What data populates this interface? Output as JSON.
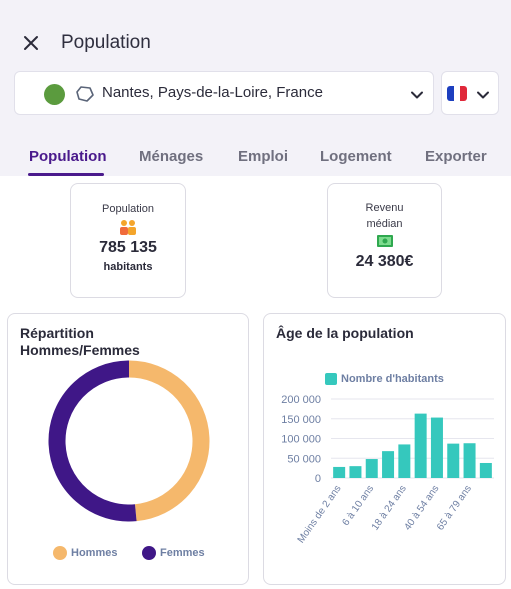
{
  "header": {
    "title": "Population"
  },
  "location": {
    "text": "Nantes, Pays-de-la-Loire, France",
    "dot_color": "#5b9b3e"
  },
  "language": {
    "flag_colors": [
      "#1d3fbf",
      "#ffffff",
      "#e0283a"
    ]
  },
  "tabs": [
    {
      "label": "Population",
      "active": true
    },
    {
      "label": "Ménages",
      "active": false
    },
    {
      "label": "Emploi",
      "active": false
    },
    {
      "label": "Logement",
      "active": false
    },
    {
      "label": "Exporter",
      "active": false
    }
  ],
  "kpis": {
    "population": {
      "label": "Population",
      "value": "785 135",
      "unit": "habitants",
      "icon": "people-icon"
    },
    "income": {
      "label_line1": "Revenu",
      "label_line2": "médian",
      "value": "24 380€",
      "icon": "money-icon"
    }
  },
  "gender_chart": {
    "title_line1": "Répartition",
    "title_line2": "Hommes/Femmes",
    "chart_data": {
      "type": "pie",
      "categories": [
        "Hommes",
        "Femmes"
      ],
      "values": [
        48.5,
        51.5
      ],
      "colors": [
        "#f5b86c",
        "#3f1787"
      ],
      "legend_position": "bottom"
    }
  },
  "age_chart": {
    "title": "Âge de la population",
    "chart_data": {
      "type": "bar",
      "series": [
        {
          "name": "Nombre d'habitants",
          "values": [
            28000,
            30000,
            48000,
            68000,
            85000,
            163000,
            153000,
            87000,
            88000,
            38000
          ]
        }
      ],
      "categories": [
        "Moins de 2 ans",
        "",
        "6 à 10 ans",
        "",
        "18 à 24 ans",
        "",
        "40 à 54 ans",
        "",
        "65 à 79 ans",
        ""
      ],
      "yticks": [
        "200 000",
        "150 000",
        "100 000",
        "50 000",
        "0"
      ],
      "ylim": [
        0,
        200000
      ],
      "color": "#35c8bd",
      "legend_position": "top",
      "grid": true
    }
  }
}
